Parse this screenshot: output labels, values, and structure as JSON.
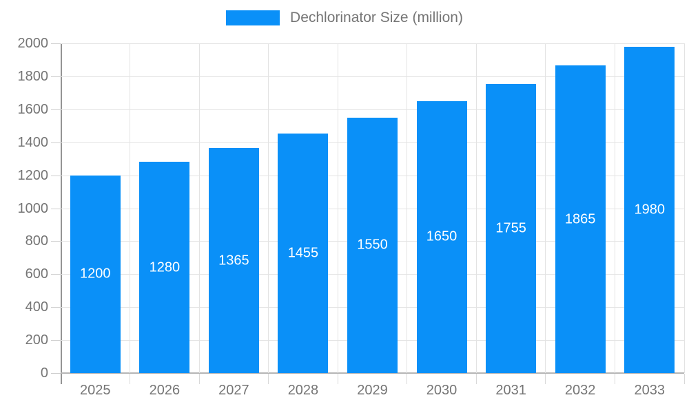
{
  "chart_data": {
    "type": "bar",
    "title": "Dechlorinator Size (million)",
    "legend_label": "Dechlorinator Size (million)",
    "legend_position": "top",
    "categories": [
      "2025",
      "2026",
      "2027",
      "2028",
      "2029",
      "2030",
      "2031",
      "2032",
      "2033"
    ],
    "series": [
      {
        "name": "Dechlorinator Size (million)",
        "color": "#0A90F8",
        "values": [
          1200,
          1280,
          1365,
          1455,
          1550,
          1650,
          1755,
          1865,
          1980
        ]
      }
    ],
    "value_labels": [
      1200,
      1280,
      1365,
      1455,
      1550,
      1650,
      1755,
      1865,
      1980
    ],
    "xlabel": "",
    "ylabel": "",
    "ylim": [
      0,
      2000
    ],
    "ytick_step": 200,
    "ytick_labels": [
      "0",
      "200",
      "400",
      "600",
      "800",
      "1000",
      "1200",
      "1400",
      "1600",
      "1800",
      "2000"
    ],
    "grid": "on",
    "colors": {
      "bar": "#0A90F8",
      "axis_text": "#757575",
      "value_label_text": "#ffffff",
      "gridline": "#e3e3e3",
      "y_axis_line": "#949494",
      "x_axis_line": "#b5b5b5"
    }
  }
}
